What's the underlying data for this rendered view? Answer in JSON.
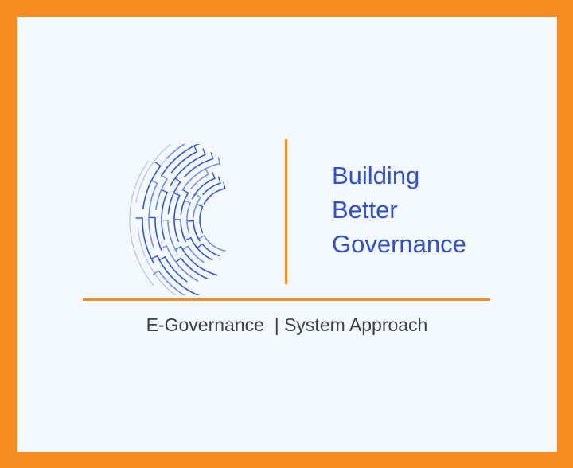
{
  "colors": {
    "frame": "#F58D20",
    "background": "#F3F9FE",
    "brand_blue": "#2F4FD6",
    "accent_orange": "#F58D20",
    "text_dark": "#3D4148"
  },
  "logo": {
    "icon": "circuit-arc-logo-icon"
  },
  "headline": {
    "line1": "Building",
    "line2": "Better",
    "line3": "Governance"
  },
  "tagline": {
    "left": "E-Governance",
    "separator": "  |",
    "right": " System Approach"
  }
}
